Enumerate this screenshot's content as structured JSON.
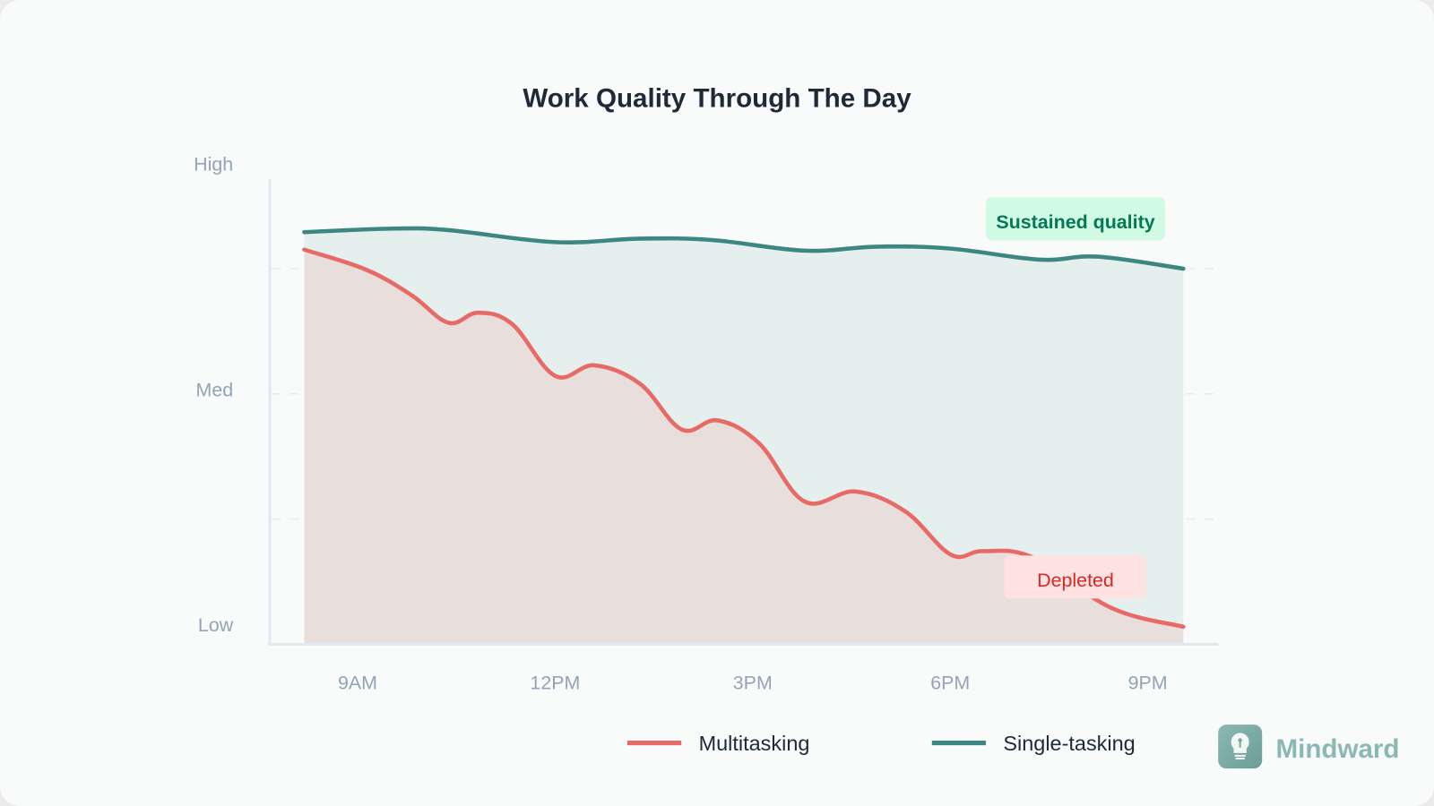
{
  "chart_data": {
    "type": "area",
    "title": "Work Quality Through The Day",
    "xlabel": "",
    "ylabel": "",
    "x_unit": "hour of day",
    "xlim": [
      8.19,
      21.54
    ],
    "ylim": [
      0,
      100
    ],
    "x_ticks": [
      {
        "value": 9,
        "label": "9AM"
      },
      {
        "value": 12,
        "label": "12PM"
      },
      {
        "value": 15,
        "label": "3PM"
      },
      {
        "value": 18,
        "label": "6PM"
      },
      {
        "value": 21,
        "label": "9PM"
      }
    ],
    "y_ticks": [
      {
        "value": 4,
        "label": "Low"
      },
      {
        "value": 51,
        "label": "Med"
      },
      {
        "value": 96,
        "label": "High"
      }
    ],
    "grid": "horizontal dashed",
    "legend": "bottom",
    "series": [
      {
        "name": "Multitasking",
        "color": "#e76a66",
        "fill": "#e8dedc",
        "x": [
          8.19,
          9.13,
          9.82,
          10.38,
          10.83,
          11.35,
          12.0,
          12.6,
          13.29,
          13.92,
          14.47,
          15.1,
          15.79,
          16.56,
          17.32,
          18.01,
          18.5,
          19.26,
          20.44,
          21.54
        ],
        "y": [
          78.8,
          74.8,
          69.7,
          64.2,
          66.2,
          63.9,
          53.6,
          55.7,
          52.0,
          42.9,
          44.7,
          40.1,
          28.5,
          30.5,
          26.5,
          17.9,
          18.6,
          17.3,
          7.3,
          3.5
        ]
      },
      {
        "name": "Single-tasking",
        "color": "#3d8782",
        "fill": "#e5efed",
        "x": [
          8.19,
          9.54,
          10.38,
          12.0,
          13.29,
          14.4,
          15.79,
          16.9,
          18.01,
          19.36,
          20.24,
          21.54
        ],
        "y": [
          82.3,
          83.0,
          82.7,
          80.3,
          81.0,
          80.7,
          78.6,
          79.4,
          79.0,
          76.8,
          77.4,
          75.0
        ]
      }
    ],
    "annotations": [
      {
        "text": "Sustained quality",
        "series": "Single-tasking",
        "color": "#047857",
        "background": "#d1fae5"
      },
      {
        "text": "Depleted",
        "series": "Multitasking",
        "color": "#dc2626",
        "background": "#fee2e2"
      }
    ]
  },
  "brand": {
    "name": "Mindward",
    "icon": "lightbulb-icon",
    "color": "#8ab8b4"
  }
}
